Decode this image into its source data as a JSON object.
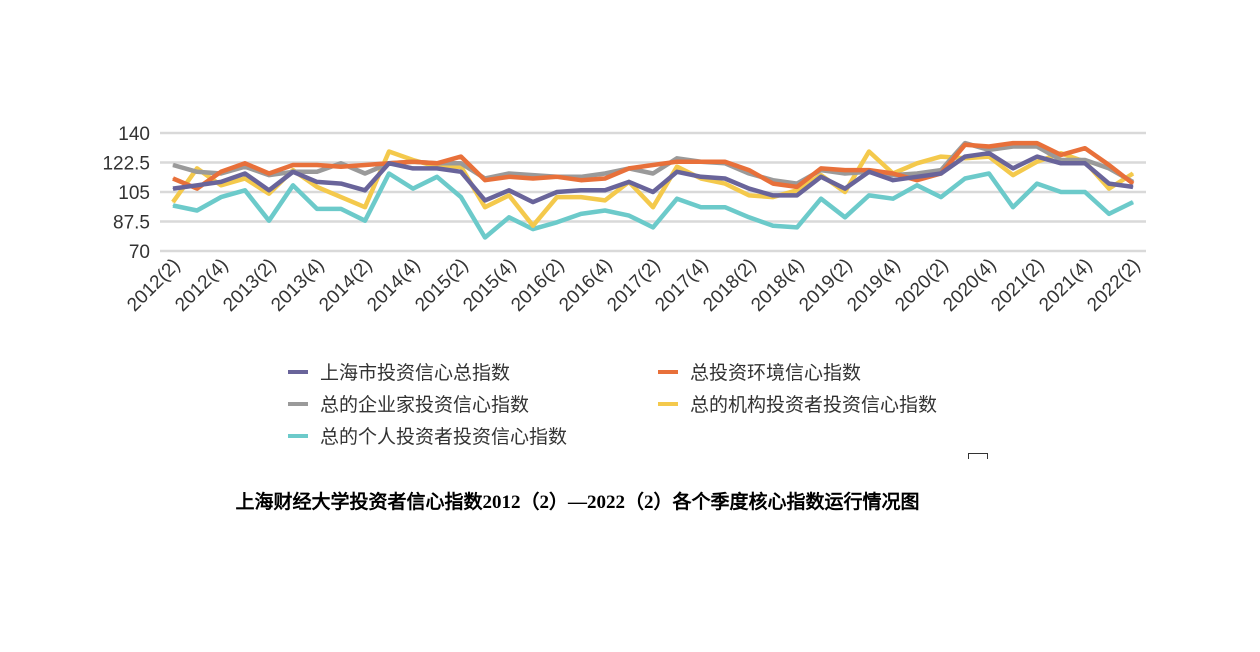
{
  "chart_data": {
    "type": "line",
    "title": "上海财经大学投资者信心指数2012（2）—2022（2）各个季度核心指数运行情况图",
    "xlabel": "",
    "ylabel": "",
    "ylim": [
      70,
      140
    ],
    "yticks": [
      "140",
      "122.5",
      "105",
      "87.5",
      "70"
    ],
    "ytick_values": [
      140,
      122.5,
      105,
      87.5,
      70
    ],
    "grid": true,
    "legend_position": "bottom",
    "x": [
      "2012(2)",
      "2012(3)",
      "2012(4)",
      "2013(1)",
      "2013(2)",
      "2013(3)",
      "2013(4)",
      "2014(1)",
      "2014(2)",
      "2014(3)",
      "2014(4)",
      "2015(1)",
      "2015(2)",
      "2015(3)",
      "2015(4)",
      "2016(1)",
      "2016(2)",
      "2016(3)",
      "2016(4)",
      "2017(1)",
      "2017(2)",
      "2017(3)",
      "2017(4)",
      "2018(1)",
      "2018(2)",
      "2018(3)",
      "2018(4)",
      "2019(1)",
      "2019(2)",
      "2019(3)",
      "2019(4)",
      "2020(1)",
      "2020(2)",
      "2020(3)",
      "2020(4)",
      "2021(1)",
      "2021(2)",
      "2021(3)",
      "2021(4)",
      "2022(1)",
      "2022(2)"
    ],
    "xtick_labels": [
      "2012(2)",
      "2012(4)",
      "2013(2)",
      "2013(4)",
      "2014(2)",
      "2014(4)",
      "2015(2)",
      "2015(4)",
      "2016(2)",
      "2016(4)",
      "2017(2)",
      "2017(4)",
      "2018(2)",
      "2018(4)",
      "2019(2)",
      "2019(4)",
      "2020(2)",
      "2020(4)",
      "2021(2)",
      "2021(4)",
      "2022(2)"
    ],
    "series": [
      {
        "name": "总的个人投资者投资信心指数",
        "color": "#6ccaca",
        "values": [
          97,
          94,
          102,
          106,
          88,
          109,
          95,
          95,
          88,
          116,
          107,
          114,
          102,
          78,
          90,
          83,
          87,
          92,
          94,
          91,
          84,
          101,
          96,
          96,
          90,
          85,
          84,
          101,
          90,
          103,
          101,
          109,
          102,
          113,
          116,
          96,
          110,
          105,
          105,
          92,
          99
        ]
      },
      {
        "name": "总的机构投资者投资信心指数",
        "color": "#f4c94c",
        "values": [
          99,
          119,
          109,
          113,
          104,
          118,
          108,
          102,
          96,
          129,
          124,
          120,
          120,
          96,
          103,
          85,
          102,
          102,
          100,
          111,
          96,
          120,
          113,
          110,
          103,
          102,
          106,
          115,
          105,
          129,
          116,
          122,
          126,
          125,
          126,
          115,
          123,
          128,
          123,
          107,
          116
        ]
      },
      {
        "name": "总的企业家投资信心指数",
        "color": "#9a9a9a",
        "values": [
          121,
          117,
          116,
          120,
          115,
          117,
          117,
          122,
          116,
          122,
          123,
          122,
          122,
          113,
          116,
          115,
          114,
          114,
          116,
          119,
          116,
          125,
          123,
          122,
          116,
          112,
          110,
          118,
          116,
          117,
          115,
          116,
          118,
          134,
          130,
          132,
          132,
          124,
          124,
          119,
          111
        ]
      },
      {
        "name": "总投资环境信心指数",
        "color": "#e8703a",
        "values": [
          113,
          107,
          117,
          122,
          116,
          121,
          121,
          120,
          121,
          122,
          123,
          122,
          126,
          112,
          114,
          113,
          114,
          112,
          113,
          119,
          121,
          123,
          123,
          123,
          118,
          110,
          108,
          119,
          118,
          118,
          116,
          112,
          116,
          133,
          132,
          134,
          134,
          127,
          131,
          121,
          110
        ]
      },
      {
        "name": "上海市投资信心总指数",
        "color": "#69649a",
        "values": [
          107,
          109,
          111,
          116,
          106,
          117,
          111,
          110,
          106,
          122,
          119,
          119,
          117,
          100,
          106,
          99,
          105,
          106,
          106,
          111,
          105,
          117,
          114,
          113,
          107,
          103,
          103,
          114,
          107,
          117,
          112,
          114,
          116,
          126,
          128,
          119,
          126,
          122,
          122,
          110,
          108
        ]
      }
    ]
  },
  "legend": [
    {
      "label": "上海市投资信心总指数",
      "color": "#69649a"
    },
    {
      "label": "总投资环境信心指数",
      "color": "#e8703a"
    },
    {
      "label": "总的企业家投资信心指数",
      "color": "#9a9a9a"
    },
    {
      "label": "总的机构投资者投资信心指数",
      "color": "#f4c94c"
    },
    {
      "label": "总的个人投资者投资信心指数",
      "color": "#6ccaca"
    }
  ]
}
